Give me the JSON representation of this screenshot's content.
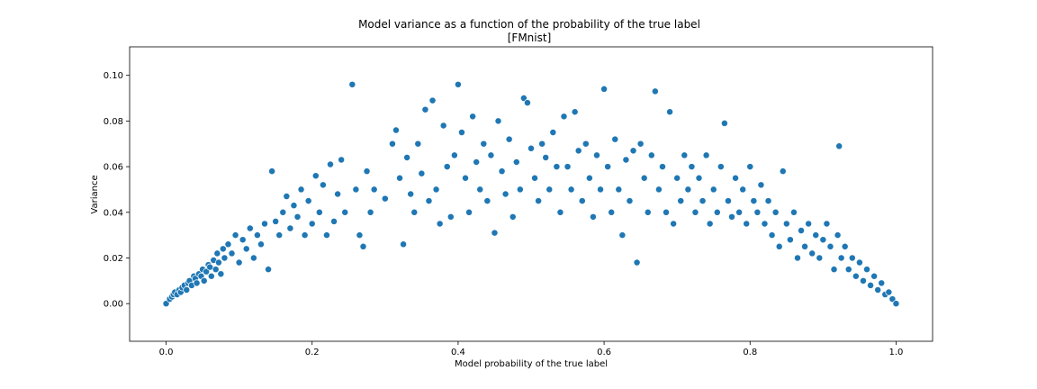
{
  "chart_data": {
    "type": "scatter",
    "title": "Model variance as a function of the probability of the true label",
    "subtitle": "[FMnist]",
    "xlabel": "Model probability of the true label",
    "ylabel": "Variance",
    "xlim": [
      -0.05,
      1.05
    ],
    "ylim": [
      -0.0165,
      0.1125
    ],
    "x_ticks": [
      0.0,
      0.2,
      0.4,
      0.6,
      0.8,
      1.0
    ],
    "x_tick_labels": [
      "0.0",
      "0.2",
      "0.4",
      "0.6",
      "0.8",
      "1.0"
    ],
    "y_ticks": [
      0.0,
      0.02,
      0.04,
      0.06,
      0.08,
      0.1
    ],
    "y_tick_labels": [
      "0.00",
      "0.02",
      "0.04",
      "0.06",
      "0.08",
      "0.10"
    ],
    "grid": false,
    "legend": "none",
    "marker_color": "#1f77b4",
    "marker_edge_color": "#ffffff",
    "series": [
      {
        "points": [
          [
            0.0,
            0.0
          ],
          [
            0.005,
            0.002
          ],
          [
            0.008,
            0.003
          ],
          [
            0.01,
            0.004
          ],
          [
            0.012,
            0.005
          ],
          [
            0.015,
            0.004
          ],
          [
            0.018,
            0.006
          ],
          [
            0.02,
            0.005
          ],
          [
            0.022,
            0.007
          ],
          [
            0.025,
            0.008
          ],
          [
            0.028,
            0.006
          ],
          [
            0.03,
            0.009
          ],
          [
            0.032,
            0.01
          ],
          [
            0.035,
            0.008
          ],
          [
            0.038,
            0.012
          ],
          [
            0.04,
            0.011
          ],
          [
            0.042,
            0.009
          ],
          [
            0.045,
            0.013
          ],
          [
            0.048,
            0.012
          ],
          [
            0.05,
            0.015
          ],
          [
            0.052,
            0.01
          ],
          [
            0.055,
            0.014
          ],
          [
            0.058,
            0.017
          ],
          [
            0.06,
            0.016
          ],
          [
            0.062,
            0.012
          ],
          [
            0.065,
            0.019
          ],
          [
            0.068,
            0.015
          ],
          [
            0.07,
            0.022
          ],
          [
            0.072,
            0.018
          ],
          [
            0.075,
            0.013
          ],
          [
            0.078,
            0.024
          ],
          [
            0.08,
            0.02
          ],
          [
            0.085,
            0.026
          ],
          [
            0.09,
            0.022
          ],
          [
            0.095,
            0.03
          ],
          [
            0.1,
            0.018
          ],
          [
            0.105,
            0.028
          ],
          [
            0.11,
            0.024
          ],
          [
            0.115,
            0.033
          ],
          [
            0.12,
            0.02
          ],
          [
            0.125,
            0.03
          ],
          [
            0.13,
            0.026
          ],
          [
            0.135,
            0.035
          ],
          [
            0.14,
            0.015
          ],
          [
            0.145,
            0.058
          ],
          [
            0.15,
            0.036
          ],
          [
            0.155,
            0.03
          ],
          [
            0.16,
            0.04
          ],
          [
            0.165,
            0.047
          ],
          [
            0.17,
            0.033
          ],
          [
            0.175,
            0.043
          ],
          [
            0.18,
            0.038
          ],
          [
            0.185,
            0.05
          ],
          [
            0.19,
            0.03
          ],
          [
            0.195,
            0.045
          ],
          [
            0.2,
            0.035
          ],
          [
            0.205,
            0.056
          ],
          [
            0.21,
            0.04
          ],
          [
            0.215,
            0.052
          ],
          [
            0.22,
            0.03
          ],
          [
            0.225,
            0.061
          ],
          [
            0.23,
            0.036
          ],
          [
            0.235,
            0.048
          ],
          [
            0.24,
            0.063
          ],
          [
            0.245,
            0.04
          ],
          [
            0.255,
            0.096
          ],
          [
            0.26,
            0.05
          ],
          [
            0.265,
            0.03
          ],
          [
            0.27,
            0.025
          ],
          [
            0.275,
            0.058
          ],
          [
            0.28,
            0.04
          ],
          [
            0.285,
            0.05
          ],
          [
            0.3,
            0.046
          ],
          [
            0.31,
            0.07
          ],
          [
            0.315,
            0.076
          ],
          [
            0.32,
            0.055
          ],
          [
            0.325,
            0.026
          ],
          [
            0.33,
            0.064
          ],
          [
            0.335,
            0.048
          ],
          [
            0.34,
            0.04
          ],
          [
            0.345,
            0.07
          ],
          [
            0.35,
            0.057
          ],
          [
            0.355,
            0.085
          ],
          [
            0.36,
            0.045
          ],
          [
            0.365,
            0.089
          ],
          [
            0.37,
            0.05
          ],
          [
            0.375,
            0.035
          ],
          [
            0.38,
            0.078
          ],
          [
            0.385,
            0.06
          ],
          [
            0.39,
            0.038
          ],
          [
            0.395,
            0.065
          ],
          [
            0.4,
            0.096
          ],
          [
            0.405,
            0.075
          ],
          [
            0.41,
            0.055
          ],
          [
            0.415,
            0.04
          ],
          [
            0.42,
            0.082
          ],
          [
            0.425,
            0.062
          ],
          [
            0.43,
            0.05
          ],
          [
            0.435,
            0.07
          ],
          [
            0.44,
            0.045
          ],
          [
            0.445,
            0.065
          ],
          [
            0.45,
            0.031
          ],
          [
            0.455,
            0.08
          ],
          [
            0.46,
            0.058
          ],
          [
            0.465,
            0.048
          ],
          [
            0.47,
            0.072
          ],
          [
            0.475,
            0.038
          ],
          [
            0.48,
            0.062
          ],
          [
            0.485,
            0.05
          ],
          [
            0.49,
            0.09
          ],
          [
            0.495,
            0.088
          ],
          [
            0.5,
            0.068
          ],
          [
            0.505,
            0.055
          ],
          [
            0.51,
            0.045
          ],
          [
            0.515,
            0.07
          ],
          [
            0.52,
            0.064
          ],
          [
            0.525,
            0.05
          ],
          [
            0.53,
            0.075
          ],
          [
            0.535,
            0.06
          ],
          [
            0.54,
            0.04
          ],
          [
            0.545,
            0.082
          ],
          [
            0.55,
            0.06
          ],
          [
            0.555,
            0.05
          ],
          [
            0.56,
            0.084
          ],
          [
            0.565,
            0.067
          ],
          [
            0.57,
            0.045
          ],
          [
            0.575,
            0.07
          ],
          [
            0.58,
            0.055
          ],
          [
            0.585,
            0.038
          ],
          [
            0.59,
            0.065
          ],
          [
            0.595,
            0.05
          ],
          [
            0.6,
            0.094
          ],
          [
            0.605,
            0.06
          ],
          [
            0.61,
            0.04
          ],
          [
            0.615,
            0.072
          ],
          [
            0.62,
            0.05
          ],
          [
            0.625,
            0.03
          ],
          [
            0.63,
            0.063
          ],
          [
            0.635,
            0.045
          ],
          [
            0.64,
            0.067
          ],
          [
            0.645,
            0.018
          ],
          [
            0.65,
            0.07
          ],
          [
            0.655,
            0.055
          ],
          [
            0.66,
            0.04
          ],
          [
            0.665,
            0.065
          ],
          [
            0.67,
            0.093
          ],
          [
            0.675,
            0.05
          ],
          [
            0.68,
            0.06
          ],
          [
            0.685,
            0.04
          ],
          [
            0.69,
            0.084
          ],
          [
            0.695,
            0.035
          ],
          [
            0.7,
            0.055
          ],
          [
            0.705,
            0.045
          ],
          [
            0.71,
            0.065
          ],
          [
            0.715,
            0.05
          ],
          [
            0.72,
            0.06
          ],
          [
            0.725,
            0.04
          ],
          [
            0.73,
            0.055
          ],
          [
            0.735,
            0.045
          ],
          [
            0.74,
            0.065
          ],
          [
            0.745,
            0.035
          ],
          [
            0.75,
            0.05
          ],
          [
            0.755,
            0.04
          ],
          [
            0.76,
            0.06
          ],
          [
            0.765,
            0.079
          ],
          [
            0.77,
            0.045
          ],
          [
            0.775,
            0.038
          ],
          [
            0.78,
            0.055
          ],
          [
            0.785,
            0.04
          ],
          [
            0.79,
            0.05
          ],
          [
            0.795,
            0.035
          ],
          [
            0.8,
            0.06
          ],
          [
            0.805,
            0.045
          ],
          [
            0.81,
            0.04
          ],
          [
            0.815,
            0.052
          ],
          [
            0.82,
            0.035
          ],
          [
            0.825,
            0.045
          ],
          [
            0.83,
            0.03
          ],
          [
            0.835,
            0.04
          ],
          [
            0.84,
            0.025
          ],
          [
            0.845,
            0.058
          ],
          [
            0.85,
            0.035
          ],
          [
            0.855,
            0.028
          ],
          [
            0.86,
            0.04
          ],
          [
            0.865,
            0.02
          ],
          [
            0.87,
            0.032
          ],
          [
            0.875,
            0.025
          ],
          [
            0.88,
            0.035
          ],
          [
            0.885,
            0.022
          ],
          [
            0.89,
            0.03
          ],
          [
            0.895,
            0.02
          ],
          [
            0.9,
            0.028
          ],
          [
            0.905,
            0.035
          ],
          [
            0.91,
            0.025
          ],
          [
            0.915,
            0.015
          ],
          [
            0.92,
            0.03
          ],
          [
            0.922,
            0.069
          ],
          [
            0.925,
            0.02
          ],
          [
            0.93,
            0.025
          ],
          [
            0.935,
            0.015
          ],
          [
            0.94,
            0.02
          ],
          [
            0.945,
            0.012
          ],
          [
            0.95,
            0.018
          ],
          [
            0.955,
            0.01
          ],
          [
            0.96,
            0.015
          ],
          [
            0.965,
            0.008
          ],
          [
            0.97,
            0.012
          ],
          [
            0.975,
            0.006
          ],
          [
            0.98,
            0.009
          ],
          [
            0.985,
            0.004
          ],
          [
            0.99,
            0.005
          ],
          [
            0.995,
            0.002
          ],
          [
            1.0,
            0.0
          ]
        ]
      }
    ]
  }
}
